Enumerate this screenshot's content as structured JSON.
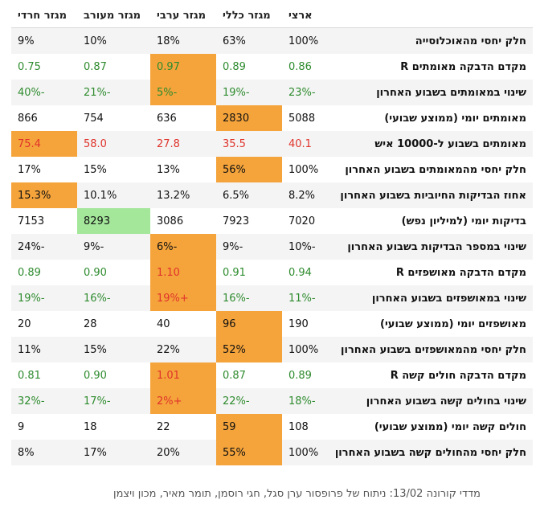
{
  "columns": [
    "ארצי",
    "מגזר כללי",
    "מגזר ערבי",
    "מגזר מעורב",
    "מגזר חרדי"
  ],
  "rows": [
    {
      "label": "חלק יחסי מהאוכלוסייה",
      "cells": [
        {
          "v": "100%",
          "c": "black"
        },
        {
          "v": "63%",
          "c": "black"
        },
        {
          "v": "18%",
          "c": "black"
        },
        {
          "v": "10%",
          "c": "black"
        },
        {
          "v": "9%",
          "c": "black"
        }
      ]
    },
    {
      "label": "מקדם הדבקה מאומתים R",
      "cells": [
        {
          "v": "0.86",
          "c": "green"
        },
        {
          "v": "0.89",
          "c": "green"
        },
        {
          "v": "0.97",
          "c": "green",
          "hl": "orange"
        },
        {
          "v": "0.87",
          "c": "green"
        },
        {
          "v": "0.75",
          "c": "green"
        }
      ]
    },
    {
      "label": "שינוי במאומתים בשבוע האחרון",
      "cells": [
        {
          "v": "-23%",
          "c": "green"
        },
        {
          "v": "-19%",
          "c": "green"
        },
        {
          "v": "-5%",
          "c": "green",
          "hl": "orange"
        },
        {
          "v": "-21%",
          "c": "green"
        },
        {
          "v": "-40%",
          "c": "green"
        }
      ]
    },
    {
      "label": "מאומתים יומי (ממוצע שבועי)",
      "cells": [
        {
          "v": "5088",
          "c": "black"
        },
        {
          "v": "2830",
          "c": "black",
          "hl": "orange"
        },
        {
          "v": "636",
          "c": "black"
        },
        {
          "v": "754",
          "c": "black"
        },
        {
          "v": "866",
          "c": "black"
        }
      ]
    },
    {
      "label": "מאומתים בשבוע ל-10000 איש",
      "cells": [
        {
          "v": "40.1",
          "c": "red"
        },
        {
          "v": "35.5",
          "c": "red"
        },
        {
          "v": "27.8",
          "c": "red"
        },
        {
          "v": "58.0",
          "c": "red"
        },
        {
          "v": "75.4",
          "c": "red",
          "hl": "orange"
        }
      ]
    },
    {
      "label": "חלק יחסי מהמאומתים בשבוע האחרון",
      "cells": [
        {
          "v": "100%",
          "c": "black"
        },
        {
          "v": "56%",
          "c": "black",
          "hl": "orange"
        },
        {
          "v": "13%",
          "c": "black"
        },
        {
          "v": "15%",
          "c": "black"
        },
        {
          "v": "17%",
          "c": "black"
        }
      ]
    },
    {
      "label": "אחוז הבדיקות החיוביות בשבוע האחרון",
      "cells": [
        {
          "v": "8.2%",
          "c": "black"
        },
        {
          "v": "6.5%",
          "c": "black"
        },
        {
          "v": "13.2%",
          "c": "black"
        },
        {
          "v": "10.1%",
          "c": "black"
        },
        {
          "v": "15.3%",
          "c": "black",
          "hl": "orange"
        }
      ]
    },
    {
      "label": "בדיקות יומי (למיליון נפש)",
      "cells": [
        {
          "v": "7020",
          "c": "black"
        },
        {
          "v": "7923",
          "c": "black"
        },
        {
          "v": "3086",
          "c": "black"
        },
        {
          "v": "8293",
          "c": "black",
          "hl": "green"
        },
        {
          "v": "7153",
          "c": "black"
        }
      ]
    },
    {
      "label": "שינוי במספר הבדיקות בשבוע האחרון",
      "cells": [
        {
          "v": "-10%",
          "c": "black"
        },
        {
          "v": "-9%",
          "c": "black"
        },
        {
          "v": "-6%",
          "c": "black",
          "hl": "orange"
        },
        {
          "v": "-9%",
          "c": "black"
        },
        {
          "v": "-24%",
          "c": "black"
        }
      ]
    },
    {
      "label": "מקדם הדבקה מאושפזים R",
      "cells": [
        {
          "v": "0.94",
          "c": "green"
        },
        {
          "v": "0.91",
          "c": "green"
        },
        {
          "v": "1.10",
          "c": "red",
          "hl": "orange"
        },
        {
          "v": "0.90",
          "c": "green"
        },
        {
          "v": "0.89",
          "c": "green"
        }
      ]
    },
    {
      "label": "שינוי במאושפזים בשבוע האחרון",
      "cells": [
        {
          "v": "-11%",
          "c": "green"
        },
        {
          "v": "-16%",
          "c": "green"
        },
        {
          "v": "+19%",
          "c": "red",
          "hl": "orange"
        },
        {
          "v": "-16%",
          "c": "green"
        },
        {
          "v": "-19%",
          "c": "green"
        }
      ]
    },
    {
      "label": "מאושפזים יומי (ממוצע שבועי)",
      "cells": [
        {
          "v": "190",
          "c": "black"
        },
        {
          "v": "96",
          "c": "black",
          "hl": "orange"
        },
        {
          "v": "40",
          "c": "black"
        },
        {
          "v": "28",
          "c": "black"
        },
        {
          "v": "20",
          "c": "black"
        }
      ]
    },
    {
      "label": "חלק יחסי מהמאושפזים בשבוע האחרון",
      "cells": [
        {
          "v": "100%",
          "c": "black"
        },
        {
          "v": "52%",
          "c": "black",
          "hl": "orange"
        },
        {
          "v": "22%",
          "c": "black"
        },
        {
          "v": "15%",
          "c": "black"
        },
        {
          "v": "11%",
          "c": "black"
        }
      ]
    },
    {
      "label": "מקדם הדבקה חולים קשה R",
      "cells": [
        {
          "v": "0.89",
          "c": "green"
        },
        {
          "v": "0.87",
          "c": "green"
        },
        {
          "v": "1.01",
          "c": "red",
          "hl": "orange"
        },
        {
          "v": "0.90",
          "c": "green"
        },
        {
          "v": "0.81",
          "c": "green"
        }
      ]
    },
    {
      "label": "שינוי בחולים קשה בשבוע האחרון",
      "cells": [
        {
          "v": "-18%",
          "c": "green"
        },
        {
          "v": "-22%",
          "c": "green"
        },
        {
          "v": "+2%",
          "c": "red",
          "hl": "orange"
        },
        {
          "v": "-17%",
          "c": "green"
        },
        {
          "v": "-32%",
          "c": "green"
        }
      ]
    },
    {
      "label": "חולים קשה יומי (ממוצע שבועי)",
      "cells": [
        {
          "v": "108",
          "c": "black"
        },
        {
          "v": "59",
          "c": "black",
          "hl": "orange"
        },
        {
          "v": "22",
          "c": "black"
        },
        {
          "v": "18",
          "c": "black"
        },
        {
          "v": "9",
          "c": "black"
        }
      ]
    },
    {
      "label": "חלק יחסי מהחולים קשה בשבוע האחרון",
      "cells": [
        {
          "v": "100%",
          "c": "black"
        },
        {
          "v": "55%",
          "c": "black",
          "hl": "orange"
        },
        {
          "v": "20%",
          "c": "black"
        },
        {
          "v": "17%",
          "c": "black"
        },
        {
          "v": "8%",
          "c": "black"
        }
      ]
    }
  ],
  "footer": "מדדי קורונה 13/02: ניתוח של פרופסור ערן סגל, חגי רוסמן, תומר מאיר, מכון ויצמן",
  "colors": {
    "highlight_orange": "#f5a43b",
    "highlight_green": "#a4e79b",
    "good": "#2e8b2e",
    "bad": "#e0332b"
  }
}
